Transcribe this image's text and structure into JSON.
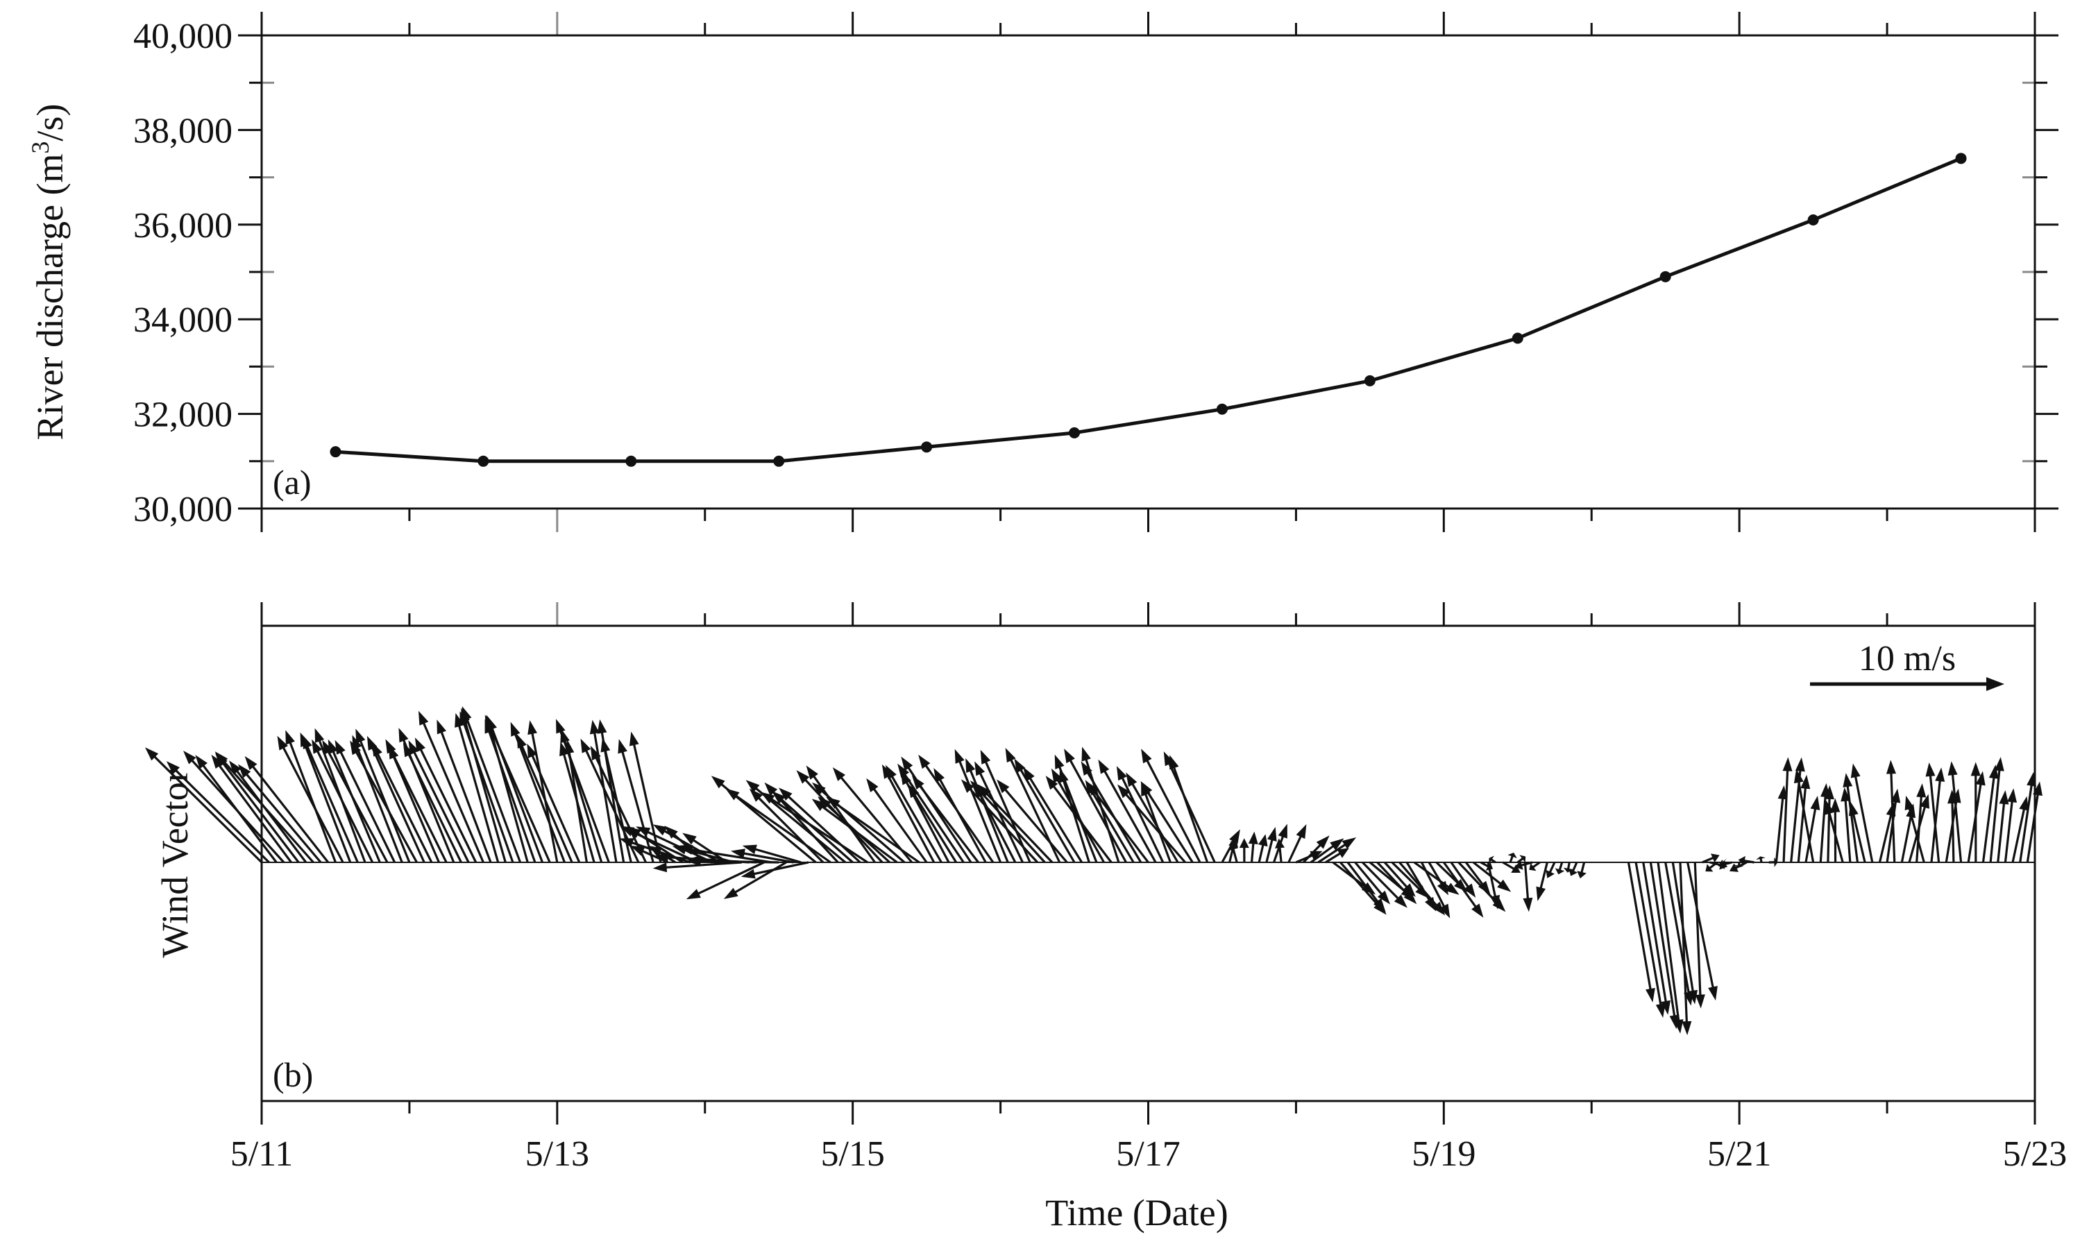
{
  "colors": {
    "ink": "#111111",
    "background": "#ffffff"
  },
  "chart_data": [
    {
      "type": "line",
      "panel_label": "(a)",
      "ylabel": "River discharge (m³/s)",
      "ylabel_base": "River discharge (m",
      "ylabel_sup": "3",
      "ylabel_end": "/s)",
      "xlim": [
        "5/11",
        "5/23"
      ],
      "ylim": [
        30000,
        40000
      ],
      "ytick_labels": [
        "30,000",
        "32,000",
        "34,000",
        "36,000",
        "38,000",
        "40,000"
      ],
      "x": [
        "5/11 12:00",
        "5/12 12:00",
        "5/13 12:00",
        "5/14 12:00",
        "5/15 12:00",
        "5/16 12:00",
        "5/17 12:00",
        "5/18 12:00",
        "5/19 12:00",
        "5/20 12:00",
        "5/21 12:00",
        "5/22 12:00"
      ],
      "values": [
        31200,
        31000,
        31000,
        31000,
        31300,
        31600,
        32100,
        32700,
        33600,
        34900,
        36100,
        37400
      ]
    },
    {
      "type": "vector",
      "panel_label": "(b)",
      "ylabel": "Wind Vector",
      "xlabel": "Time (Date)",
      "xlim": [
        "5/11",
        "5/23"
      ],
      "xtick_labels": [
        "5/11",
        "5/13",
        "5/15",
        "5/17",
        "5/19",
        "5/21",
        "5/23"
      ],
      "reference_label": "10 m/s",
      "reference_speed": 10,
      "samples_per_day": 20,
      "segments": [
        {
          "from": "5/11 00:00",
          "to": "5/11 12:00",
          "u": [
            -6.0,
            -3.5
          ],
          "v": [
            5.0,
            6.0
          ]
        },
        {
          "from": "5/11 12:00",
          "to": "5/12 12:00",
          "u": [
            -3.5,
            -2.5
          ],
          "v": [
            6.0,
            7.0
          ]
        },
        {
          "from": "5/12 12:00",
          "to": "5/13 00:00",
          "u": [
            -4.0,
            -2.0
          ],
          "v": [
            7.0,
            8.5
          ]
        },
        {
          "from": "5/13 00:00",
          "to": "5/13 18:00",
          "u": [
            -3.0,
            -1.0
          ],
          "v": [
            6.0,
            7.5
          ]
        },
        {
          "from": "5/13 18:00",
          "to": "5/14 06:00",
          "u": [
            -4.0,
            -1.0
          ],
          "v": [
            0.5,
            2.0
          ]
        },
        {
          "from": "5/14 06:00",
          "to": "5/14 18:00",
          "u": [
            -5.0,
            -3.0
          ],
          "v": [
            -2.0,
            1.0
          ]
        },
        {
          "from": "5/14 18:00",
          "to": "5/15 12:00",
          "u": [
            -6.0,
            -3.5
          ],
          "v": [
            3.0,
            5.0
          ]
        },
        {
          "from": "5/15 12:00",
          "to": "5/16 12:00",
          "u": [
            -4.0,
            -2.0
          ],
          "v": [
            4.0,
            6.0
          ]
        },
        {
          "from": "5/16 12:00",
          "to": "5/17 12:00",
          "u": [
            -3.5,
            -1.5
          ],
          "v": [
            4.0,
            6.0
          ]
        },
        {
          "from": "5/17 12:00",
          "to": "5/18 00:00",
          "u": [
            -1.0,
            1.0
          ],
          "v": [
            0.5,
            2.0
          ]
        },
        {
          "from": "5/18 00:00",
          "to": "5/18 06:00",
          "u": [
            1.0,
            2.0
          ],
          "v": [
            0.5,
            1.5
          ]
        },
        {
          "from": "5/18 06:00",
          "to": "5/19 06:00",
          "u": [
            1.0,
            2.5
          ],
          "v": [
            -1.5,
            -3.0
          ]
        },
        {
          "from": "5/19 06:00",
          "to": "5/19 18:00",
          "u": [
            -1.0,
            1.0
          ],
          "v": [
            -3.0,
            1.5
          ]
        },
        {
          "from": "5/19 18:00",
          "to": "5/20 00:00",
          "u": [
            -1.0,
            0.0
          ],
          "v": [
            -0.5,
            -1.0
          ]
        },
        {
          "from": "5/20 06:00",
          "to": "5/20 18:00",
          "u": [
            0.2,
            1.5
          ],
          "v": [
            -7.0,
            -9.0
          ]
        },
        {
          "from": "5/20 18:00",
          "to": "5/21 06:00",
          "u": [
            -1.0,
            1.0
          ],
          "v": [
            -0.5,
            0.5
          ]
        },
        {
          "from": "5/21 06:00",
          "to": "5/22 00:00",
          "u": [
            -1.0,
            1.0
          ],
          "v": [
            3.0,
            5.5
          ]
        },
        {
          "from": "5/22 00:00",
          "to": "5/23 00:00",
          "u": [
            -1.0,
            1.0
          ],
          "v": [
            3.0,
            5.5
          ]
        }
      ]
    }
  ]
}
